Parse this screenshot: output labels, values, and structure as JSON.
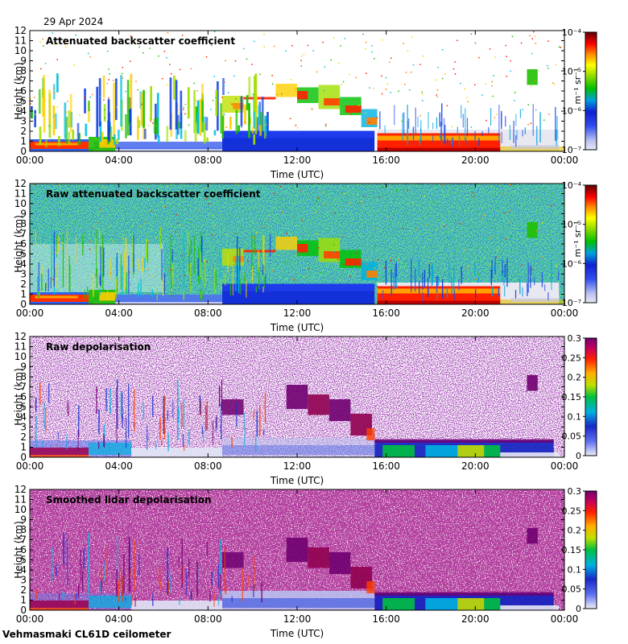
{
  "date": "29 Apr 2024",
  "site": "Vehmasmaki CL61D ceilometer",
  "chart_data": [
    {
      "type": "heatmap",
      "title": "Attenuated backscatter coefficient",
      "xlabel": "Time (UTC)",
      "ylabel": "Height (km)",
      "x_ticks": [
        "00:00",
        "04:00",
        "08:00",
        "12:00",
        "16:00",
        "20:00",
        "00:00"
      ],
      "y_ticks": [
        "0",
        "1",
        "2",
        "3",
        "4",
        "5",
        "6",
        "7",
        "8",
        "9",
        "10",
        "11",
        "12"
      ],
      "ylim": [
        0,
        12
      ],
      "colorbar": {
        "scale": "log",
        "unit": "m⁻¹ sr⁻¹",
        "min": 1e-07,
        "max": 0.0001,
        "ticks": [
          "10⁻⁴",
          "10⁻⁵",
          "10⁻⁶",
          "10⁻⁷"
        ]
      }
    },
    {
      "type": "heatmap",
      "title": "Raw attenuated backscatter coefficient",
      "xlabel": "Time (UTC)",
      "ylabel": "Height (km)",
      "x_ticks": [
        "00:00",
        "04:00",
        "08:00",
        "12:00",
        "16:00",
        "20:00",
        "00:00"
      ],
      "y_ticks": [
        "0",
        "1",
        "2",
        "3",
        "4",
        "5",
        "6",
        "7",
        "8",
        "9",
        "10",
        "11",
        "12"
      ],
      "ylim": [
        0,
        12
      ],
      "colorbar": {
        "scale": "log",
        "unit": "m⁻¹ sr⁻¹",
        "min": 1e-07,
        "max": 0.0001,
        "ticks": [
          "10⁻⁴",
          "10⁻⁵",
          "10⁻⁶",
          "10⁻⁷"
        ]
      }
    },
    {
      "type": "heatmap",
      "title": "Raw depolarisation",
      "xlabel": "Time (UTC)",
      "ylabel": "Height (km)",
      "x_ticks": [
        "00:00",
        "04:00",
        "08:00",
        "12:00",
        "16:00",
        "20:00",
        "00:00"
      ],
      "y_ticks": [
        "0",
        "1",
        "2",
        "3",
        "4",
        "5",
        "6",
        "7",
        "8",
        "9",
        "10",
        "11",
        "12"
      ],
      "ylim": [
        0,
        12
      ],
      "colorbar": {
        "scale": "linear",
        "unit": "",
        "min": 0,
        "max": 0.3,
        "ticks": [
          "0.3",
          "0.25",
          "0.2",
          "0.15",
          "0.1",
          "0.05",
          "0"
        ]
      }
    },
    {
      "type": "heatmap",
      "title": "Smoothed lidar depolarisation",
      "xlabel": "Time (UTC)",
      "ylabel": "Height (km)",
      "x_ticks": [
        "00:00",
        "04:00",
        "08:00",
        "12:00",
        "16:00",
        "20:00",
        "00:00"
      ],
      "y_ticks": [
        "0",
        "1",
        "2",
        "3",
        "4",
        "5",
        "6",
        "7",
        "8",
        "9",
        "10",
        "11",
        "12"
      ],
      "ylim": [
        0,
        12
      ],
      "colorbar": {
        "scale": "linear",
        "unit": "",
        "min": 0,
        "max": 0.3,
        "ticks": [
          "0.3",
          "0.25",
          "0.2",
          "0.15",
          "0.1",
          "0.05",
          "0"
        ]
      }
    }
  ]
}
